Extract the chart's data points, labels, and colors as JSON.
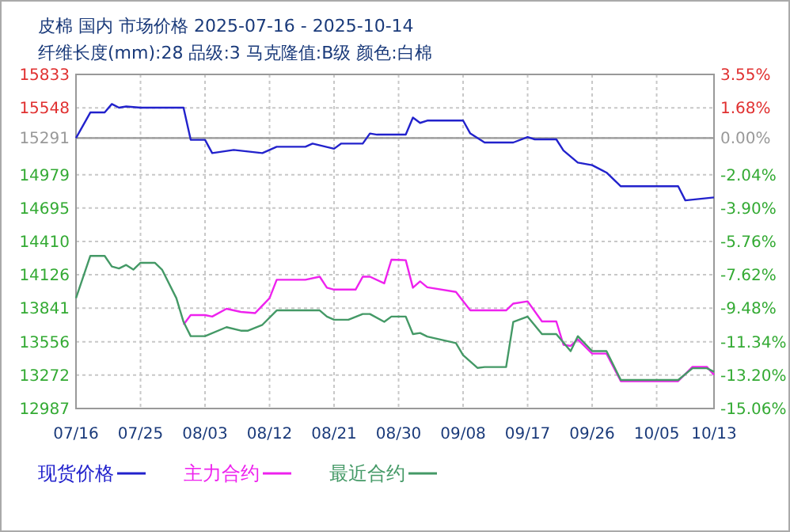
{
  "chart_data": {
    "type": "line",
    "title": "皮棉 国内 市场价格 2025-07-16 - 2025-10-14",
    "subtitle": "纤维长度(mm):28 品级:3 马克隆值:B级 颜色:白棉",
    "xlim": [
      "2025-07-16",
      "2025-10-13"
    ],
    "xticks": [
      {
        "value": "2025-07-16",
        "label": "07/16"
      },
      {
        "value": "2025-07-25",
        "label": "07/25"
      },
      {
        "value": "2025-08-03",
        "label": "08/03"
      },
      {
        "value": "2025-08-12",
        "label": "08/12"
      },
      {
        "value": "2025-08-21",
        "label": "08/21"
      },
      {
        "value": "2025-08-30",
        "label": "08/30"
      },
      {
        "value": "2025-09-08",
        "label": "09/08"
      },
      {
        "value": "2025-09-17",
        "label": "09/17"
      },
      {
        "value": "2025-09-26",
        "label": "09/26"
      },
      {
        "value": "2025-10-05",
        "label": "10/05"
      },
      {
        "value": "2025-10-13",
        "label": "10/13"
      }
    ],
    "ylim": [
      12987,
      15833
    ],
    "yticks": [
      12987,
      13272,
      13556,
      13841,
      14126,
      14410,
      14695,
      14979,
      15291,
      15548,
      15833
    ],
    "y2lim": [
      -15.06,
      3.55
    ],
    "y2ticks": [
      {
        "value": -15.06,
        "label": "-15.06%"
      },
      {
        "value": -13.2,
        "label": "-13.20%"
      },
      {
        "value": -11.34,
        "label": "-11.34%"
      },
      {
        "value": -9.48,
        "label": "-9.48%"
      },
      {
        "value": -7.62,
        "label": "-7.62%"
      },
      {
        "value": -5.76,
        "label": "-5.76%"
      },
      {
        "value": -3.9,
        "label": "-3.90%"
      },
      {
        "value": -2.04,
        "label": "-2.04%"
      },
      {
        "value": 0,
        "label": "0.00%"
      },
      {
        "value": 1.68,
        "label": "1.68%"
      },
      {
        "value": 3.55,
        "label": "3.55%"
      }
    ],
    "ref_lines": [
      {
        "axis": "y",
        "value": 15291,
        "color": "#999999",
        "line_style": "solid"
      }
    ],
    "grid": true,
    "legend": "bottom",
    "marker": "none",
    "line_style": "solid",
    "series": [
      {
        "name": "现货价格",
        "color": "#2222cc",
        "x": [
          "2025-07-16",
          "2025-07-18",
          "2025-07-20",
          "2025-07-21",
          "2025-07-22",
          "2025-07-23",
          "2025-07-25",
          "2025-07-31",
          "2025-08-01",
          "2025-08-03",
          "2025-08-04",
          "2025-08-07",
          "2025-08-11",
          "2025-08-13",
          "2025-08-17",
          "2025-08-18",
          "2025-08-21",
          "2025-08-22",
          "2025-08-25",
          "2025-08-26",
          "2025-08-27",
          "2025-08-31",
          "2025-09-01",
          "2025-09-02",
          "2025-09-03",
          "2025-09-08",
          "2025-09-09",
          "2025-09-11",
          "2025-09-15",
          "2025-09-17",
          "2025-09-18",
          "2025-09-21",
          "2025-09-22",
          "2025-09-24",
          "2025-09-26",
          "2025-09-28",
          "2025-09-30",
          "2025-10-08",
          "2025-10-09",
          "2025-10-13"
        ],
        "values": [
          15291,
          15509,
          15509,
          15581,
          15550,
          15560,
          15550,
          15550,
          15276,
          15276,
          15163,
          15190,
          15163,
          15217,
          15217,
          15244,
          15200,
          15244,
          15244,
          15330,
          15320,
          15320,
          15465,
          15420,
          15440,
          15440,
          15330,
          15253,
          15253,
          15300,
          15280,
          15280,
          15185,
          15082,
          15060,
          14997,
          14880,
          14880,
          14760,
          14785
        ]
      },
      {
        "name": "主力合约",
        "color": "#ee22ee",
        "x": [
          "2025-07-31",
          "2025-08-01",
          "2025-08-03",
          "2025-08-04",
          "2025-08-06",
          "2025-08-08",
          "2025-08-10",
          "2025-08-12",
          "2025-08-13",
          "2025-08-17",
          "2025-08-19",
          "2025-08-20",
          "2025-08-21",
          "2025-08-24",
          "2025-08-25",
          "2025-08-26",
          "2025-08-28",
          "2025-08-29",
          "2025-08-31",
          "2025-09-01",
          "2025-09-02",
          "2025-09-03",
          "2025-09-07",
          "2025-09-09",
          "2025-09-14",
          "2025-09-15",
          "2025-09-17",
          "2025-09-19",
          "2025-09-21",
          "2025-09-22",
          "2025-09-23",
          "2025-09-24",
          "2025-09-26",
          "2025-09-28",
          "2025-09-30",
          "2025-10-08",
          "2025-10-10",
          "2025-10-12",
          "2025-10-13"
        ],
        "values": [
          13702,
          13783,
          13783,
          13770,
          13837,
          13810,
          13800,
          13927,
          14084,
          14084,
          14110,
          14016,
          14000,
          14000,
          14110,
          14110,
          14053,
          14255,
          14251,
          14016,
          14070,
          14020,
          13980,
          13823,
          13823,
          13881,
          13900,
          13729,
          13729,
          13530,
          13520,
          13576,
          13455,
          13455,
          13220,
          13220,
          13342,
          13342,
          13274
        ]
      },
      {
        "name": "最近合约",
        "color": "#449966",
        "x": [
          "2025-07-16",
          "2025-07-18",
          "2025-07-20",
          "2025-07-21",
          "2025-07-22",
          "2025-07-23",
          "2025-07-24",
          "2025-07-25",
          "2025-07-27",
          "2025-07-28",
          "2025-07-30",
          "2025-07-31",
          "2025-08-01",
          "2025-08-03",
          "2025-08-06",
          "2025-08-08",
          "2025-08-09",
          "2025-08-11",
          "2025-08-13",
          "2025-08-19",
          "2025-08-20",
          "2025-08-21",
          "2025-08-23",
          "2025-08-25",
          "2025-08-26",
          "2025-08-28",
          "2025-08-29",
          "2025-08-31",
          "2025-09-01",
          "2025-09-02",
          "2025-09-03",
          "2025-09-07",
          "2025-09-08",
          "2025-09-10",
          "2025-09-11",
          "2025-09-14",
          "2025-09-15",
          "2025-09-17",
          "2025-09-19",
          "2025-09-21",
          "2025-09-23",
          "2025-09-24",
          "2025-09-26",
          "2025-09-28",
          "2025-09-30",
          "2025-10-08",
          "2025-10-10",
          "2025-10-12",
          "2025-10-13"
        ],
        "values": [
          13927,
          14287,
          14287,
          14197,
          14180,
          14210,
          14170,
          14228,
          14228,
          14170,
          13927,
          13725,
          13603,
          13603,
          13680,
          13650,
          13650,
          13700,
          13823,
          13823,
          13770,
          13743,
          13743,
          13792,
          13792,
          13725,
          13770,
          13770,
          13621,
          13630,
          13600,
          13544,
          13441,
          13333,
          13340,
          13340,
          13725,
          13770,
          13621,
          13621,
          13476,
          13603,
          13476,
          13476,
          13230,
          13230,
          13330,
          13330,
          13300
        ]
      }
    ]
  }
}
